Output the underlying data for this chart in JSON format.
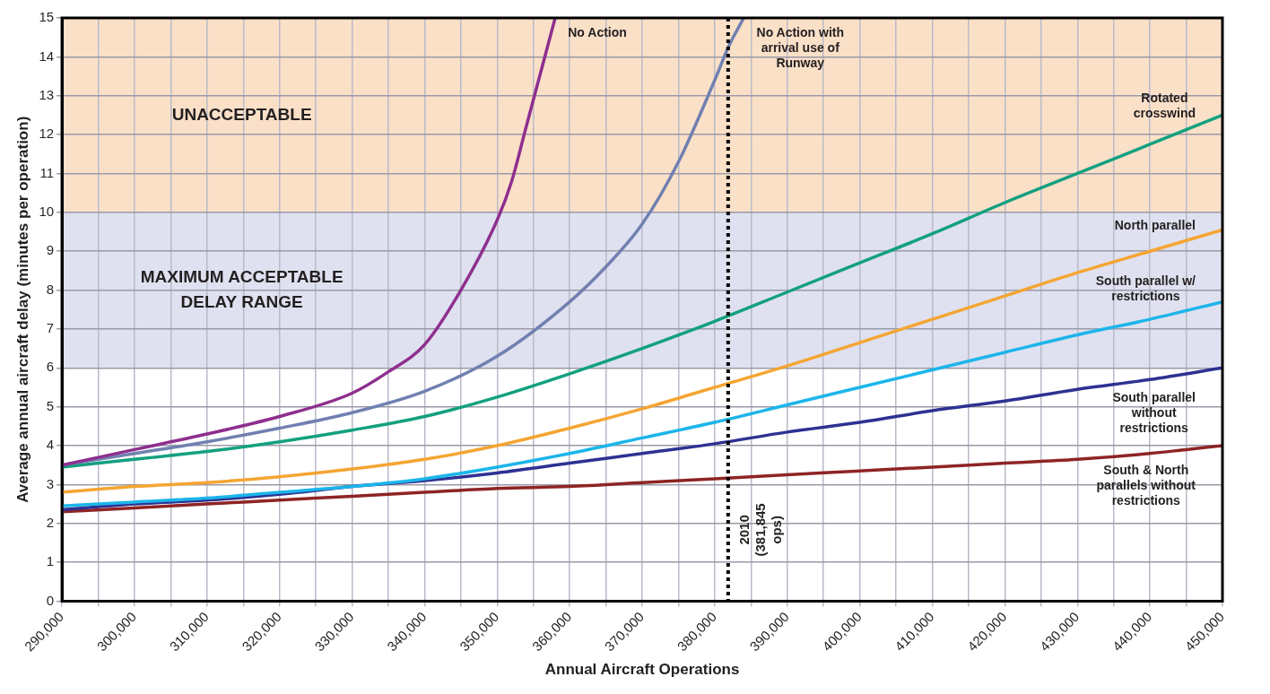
{
  "chart_data": {
    "type": "line",
    "xlabel": "Annual Aircraft Operations",
    "ylabel": "Average annual aircraft delay (minutes per operation)",
    "xlim": [
      290000,
      450000
    ],
    "xticks": [
      {
        "value": 290000,
        "label": "290,000"
      },
      {
        "value": 295000,
        "label": null
      },
      {
        "value": 300000,
        "label": "300,000"
      },
      {
        "value": 305000,
        "label": null
      },
      {
        "value": 310000,
        "label": "310,000"
      },
      {
        "value": 315000,
        "label": null
      },
      {
        "value": 320000,
        "label": "320,000"
      },
      {
        "value": 325000,
        "label": null
      },
      {
        "value": 330000,
        "label": "330,000"
      },
      {
        "value": 335000,
        "label": null
      },
      {
        "value": 340000,
        "label": "340,000"
      },
      {
        "value": 345000,
        "label": null
      },
      {
        "value": 350000,
        "label": "350,000"
      },
      {
        "value": 355000,
        "label": null
      },
      {
        "value": 360000,
        "label": "360,000"
      },
      {
        "value": 365000,
        "label": null
      },
      {
        "value": 370000,
        "label": "370,000"
      },
      {
        "value": 375000,
        "label": null
      },
      {
        "value": 380000,
        "label": "380,000"
      },
      {
        "value": 385000,
        "label": null
      },
      {
        "value": 390000,
        "label": "390,000"
      },
      {
        "value": 395000,
        "label": null
      },
      {
        "value": 400000,
        "label": "400,000"
      },
      {
        "value": 405000,
        "label": null
      },
      {
        "value": 410000,
        "label": "410,000"
      },
      {
        "value": 415000,
        "label": null
      },
      {
        "value": 420000,
        "label": "420,000"
      },
      {
        "value": 425000,
        "label": null
      },
      {
        "value": 430000,
        "label": "430,000"
      },
      {
        "value": 435000,
        "label": null
      },
      {
        "value": 440000,
        "label": "440,000"
      },
      {
        "value": 445000,
        "label": null
      },
      {
        "value": 450000,
        "label": "450,000"
      }
    ],
    "ylim": [
      0,
      15
    ],
    "yticks": [
      0,
      1,
      2,
      3,
      4,
      5,
      6,
      7,
      8,
      9,
      10,
      11,
      12,
      13,
      14,
      15
    ],
    "grid": true,
    "legend": false,
    "marker": "none",
    "line_style": "solid",
    "bands": [
      {
        "axis": "y",
        "from": 10,
        "to": 15,
        "label": "UNACCEPTABLE",
        "color": "#fbe0c8"
      },
      {
        "axis": "y",
        "from": 6,
        "to": 10,
        "label": "MAXIMUM ACCEPTABLE DELAY RANGE",
        "color": "#dfe1f0"
      }
    ],
    "ref_lines": [
      {
        "axis": "x",
        "value": 381845,
        "label": "2010 (381,845 ops)",
        "color": "#000000",
        "line_style": "dotted"
      }
    ],
    "series": [
      {
        "name": "No Action",
        "color": "#8e2f8e",
        "x": [
          290000,
          300000,
          310000,
          320000,
          330000,
          335000,
          340000,
          345000,
          350000,
          352000,
          354000,
          356000,
          358000
        ],
        "values": [
          3.5,
          3.9,
          4.3,
          4.75,
          5.35,
          5.9,
          6.6,
          8.0,
          9.8,
          10.8,
          12.2,
          13.6,
          15
        ]
      },
      {
        "name": "No Action with arrival use of Runway",
        "color": "#7080b0",
        "x": [
          290000,
          300000,
          310000,
          320000,
          330000,
          340000,
          350000,
          360000,
          365000,
          370000,
          375000,
          380000,
          382000,
          384000
        ],
        "values": [
          3.5,
          3.8,
          4.1,
          4.45,
          4.85,
          5.4,
          6.3,
          7.7,
          8.6,
          9.7,
          11.3,
          13.4,
          14.3,
          15
        ]
      },
      {
        "name": "Rotated crosswind",
        "color": "#13a07f",
        "x": [
          290000,
          300000,
          310000,
          320000,
          330000,
          340000,
          350000,
          360000,
          370000,
          380000,
          390000,
          400000,
          410000,
          420000,
          430000,
          440000,
          450000
        ],
        "values": [
          3.45,
          3.65,
          3.85,
          4.1,
          4.4,
          4.75,
          5.25,
          5.85,
          6.5,
          7.2,
          7.95,
          8.7,
          9.45,
          10.25,
          11.0,
          11.75,
          12.5
        ]
      },
      {
        "name": "North parallel",
        "color": "#f5a532",
        "x": [
          290000,
          300000,
          310000,
          320000,
          330000,
          340000,
          350000,
          360000,
          370000,
          380000,
          390000,
          400000,
          410000,
          420000,
          430000,
          440000,
          450000
        ],
        "values": [
          2.8,
          2.95,
          3.05,
          3.2,
          3.4,
          3.65,
          4.0,
          4.45,
          4.95,
          5.5,
          6.05,
          6.65,
          7.25,
          7.85,
          8.45,
          9.0,
          9.55
        ]
      },
      {
        "name": "South parallel w/ restrictions",
        "color": "#1cb5ea",
        "x": [
          290000,
          300000,
          310000,
          320000,
          330000,
          340000,
          350000,
          360000,
          370000,
          380000,
          390000,
          400000,
          410000,
          420000,
          430000,
          440000,
          450000
        ],
        "values": [
          2.45,
          2.55,
          2.65,
          2.8,
          2.95,
          3.15,
          3.45,
          3.8,
          4.2,
          4.6,
          5.05,
          5.5,
          5.95,
          6.4,
          6.85,
          7.25,
          7.7
        ]
      },
      {
        "name": "South parallel without restrictions",
        "color": "#2e3192",
        "x": [
          290000,
          300000,
          310000,
          320000,
          330000,
          340000,
          350000,
          360000,
          370000,
          380000,
          390000,
          400000,
          410000,
          420000,
          430000,
          440000,
          450000
        ],
        "values": [
          2.35,
          2.5,
          2.6,
          2.75,
          2.95,
          3.1,
          3.3,
          3.55,
          3.8,
          4.05,
          4.35,
          4.6,
          4.9,
          5.15,
          5.45,
          5.7,
          6.0
        ]
      },
      {
        "name": "South & North parallels without restrictions",
        "color": "#8e2424",
        "x": [
          290000,
          300000,
          310000,
          320000,
          330000,
          340000,
          350000,
          360000,
          370000,
          380000,
          390000,
          400000,
          410000,
          420000,
          430000,
          440000,
          445000,
          450000
        ],
        "values": [
          2.3,
          2.4,
          2.5,
          2.6,
          2.7,
          2.8,
          2.9,
          2.95,
          3.05,
          3.15,
          3.25,
          3.35,
          3.45,
          3.55,
          3.65,
          3.8,
          3.9,
          4.0
        ]
      }
    ]
  }
}
